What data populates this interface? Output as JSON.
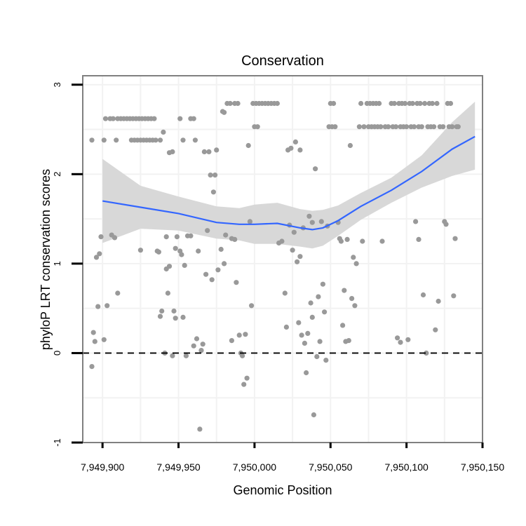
{
  "colors": {
    "panel_border": "#808080",
    "grid": "#f2f2f2",
    "points": "#999999",
    "smooth_line": "#3366ff",
    "ribbon": "#d6d6d6",
    "hline": "#000000"
  },
  "chart_data": {
    "type": "scatter",
    "title": "Conservation",
    "xlabel": "Genomic Position",
    "ylabel": "phyloP LRT conservation scores",
    "xlim": [
      7949887,
      7950150
    ],
    "ylim": [
      -1,
      3.1
    ],
    "x_ticks": [
      7949900,
      7949950,
      7950000,
      7950050,
      7950100,
      7950150
    ],
    "x_tick_labels": [
      "7,949,900",
      "7,949,950",
      "7,950,000",
      "7,950,050",
      "7,950,100",
      "7,950,150"
    ],
    "y_ticks": [
      -1,
      0,
      1,
      2,
      3
    ],
    "y_tick_labels": [
      "-1",
      "0",
      "1",
      "2",
      "3"
    ],
    "hline": {
      "y": 0,
      "style": "dashed"
    },
    "points": [
      [
        7949893,
        2.38
      ],
      [
        7949893,
        -0.15
      ],
      [
        7949894,
        0.23
      ],
      [
        7949895,
        0.13
      ],
      [
        7949896,
        1.07
      ],
      [
        7949897,
        0.52
      ],
      [
        7949898,
        1.11
      ],
      [
        7949899,
        1.3
      ],
      [
        7949901,
        0.15
      ],
      [
        7949901,
        2.38
      ],
      [
        7949902,
        2.62
      ],
      [
        7949903,
        0.53
      ],
      [
        7949905,
        2.62
      ],
      [
        7949906,
        1.32
      ],
      [
        7949907,
        2.62
      ],
      [
        7949908,
        1.29
      ],
      [
        7949909,
        2.38
      ],
      [
        7949910,
        2.62
      ],
      [
        7949910,
        0.67
      ],
      [
        7949912,
        2.62
      ],
      [
        7949914,
        2.62
      ],
      [
        7949916,
        2.62
      ],
      [
        7949918,
        2.62
      ],
      [
        7949919,
        2.38
      ],
      [
        7949920,
        2.62
      ],
      [
        7949921,
        2.38
      ],
      [
        7949922,
        2.62
      ],
      [
        7949923,
        2.38
      ],
      [
        7949924,
        2.62
      ],
      [
        7949925,
        1.15
      ],
      [
        7949925,
        2.38
      ],
      [
        7949926,
        2.62
      ],
      [
        7949927,
        2.38
      ],
      [
        7949928,
        2.62
      ],
      [
        7949929,
        2.38
      ],
      [
        7949930,
        2.62
      ],
      [
        7949931,
        2.38
      ],
      [
        7949932,
        2.62
      ],
      [
        7949933,
        2.38
      ],
      [
        7949934,
        2.62
      ],
      [
        7949935,
        2.38
      ],
      [
        7949936,
        1.14
      ],
      [
        7949937,
        1.13
      ],
      [
        7949938,
        2.38
      ],
      [
        7949938,
        0.41
      ],
      [
        7949939,
        0.47
      ],
      [
        7949940,
        2.47
      ],
      [
        7949941,
        0.0
      ],
      [
        7949942,
        0.94
      ],
      [
        7949942,
        1.3
      ],
      [
        7949943,
        0.67
      ],
      [
        7949944,
        2.24
      ],
      [
        7949944,
        0.97
      ],
      [
        7949946,
        2.25
      ],
      [
        7949946,
        -0.03
      ],
      [
        7949947,
        0.47
      ],
      [
        7949948,
        1.17
      ],
      [
        7949948,
        0.39
      ],
      [
        7949949,
        1.3
      ],
      [
        7949951,
        2.62
      ],
      [
        7949951,
        1.14
      ],
      [
        7949952,
        1.1
      ],
      [
        7949953,
        0.4
      ],
      [
        7949953,
        2.38
      ],
      [
        7949954,
        0.98
      ],
      [
        7949955,
        -0.03
      ],
      [
        7949956,
        1.31
      ],
      [
        7949958,
        2.62
      ],
      [
        7949958,
        1.31
      ],
      [
        7949960,
        0.08
      ],
      [
        7949960,
        2.62
      ],
      [
        7949961,
        2.38
      ],
      [
        7949962,
        0.16
      ],
      [
        7949963,
        1.14
      ],
      [
        7949964,
        -0.85
      ],
      [
        7949965,
        0.03
      ],
      [
        7949966,
        0.1
      ],
      [
        7949967,
        2.25
      ],
      [
        7949968,
        0.88
      ],
      [
        7949969,
        1.37
      ],
      [
        7949970,
        2.25
      ],
      [
        7949971,
        1.99
      ],
      [
        7949972,
        0.82
      ],
      [
        7949973,
        1.8
      ],
      [
        7949974,
        1.99
      ],
      [
        7949975,
        2.27
      ],
      [
        7949976,
        0.93
      ],
      [
        7949978,
        1.16
      ],
      [
        7949979,
        2.7
      ],
      [
        7949980,
        2.69
      ],
      [
        7949980,
        1.0
      ],
      [
        7949981,
        1.32
      ],
      [
        7949982,
        2.79
      ],
      [
        7949984,
        2.79
      ],
      [
        7949985,
        1.28
      ],
      [
        7949985,
        0.14
      ],
      [
        7949987,
        2.79
      ],
      [
        7949987,
        1.27
      ],
      [
        7949988,
        0.79
      ],
      [
        7949989,
        2.79
      ],
      [
        7949990,
        0.2
      ],
      [
        7949991,
        0.0
      ],
      [
        7949992,
        -0.03
      ],
      [
        7949993,
        -0.35
      ],
      [
        7949994,
        0.21
      ],
      [
        7949995,
        -0.28
      ],
      [
        7949996,
        2.32
      ],
      [
        7949997,
        1.47
      ],
      [
        7949998,
        0.53
      ],
      [
        7949999,
        2.79
      ],
      [
        7950000,
        2.53
      ],
      [
        7950001,
        2.79
      ],
      [
        7950002,
        2.53
      ],
      [
        7950003,
        2.79
      ],
      [
        7950005,
        2.79
      ],
      [
        7950007,
        2.79
      ],
      [
        7950009,
        2.79
      ],
      [
        7950011,
        2.79
      ],
      [
        7950013,
        2.79
      ],
      [
        7950015,
        2.79
      ],
      [
        7950016,
        1.23
      ],
      [
        7950018,
        1.25
      ],
      [
        7950020,
        0.67
      ],
      [
        7950021,
        0.29
      ],
      [
        7950022,
        2.27
      ],
      [
        7950023,
        1.43
      ],
      [
        7950024,
        2.29
      ],
      [
        7950025,
        1.15
      ],
      [
        7950026,
        1.35
      ],
      [
        7950027,
        2.36
      ],
      [
        7950028,
        1.02
      ],
      [
        7950029,
        0.34
      ],
      [
        7950030,
        2.27
      ],
      [
        7950030,
        1.08
      ],
      [
        7950031,
        0.2
      ],
      [
        7950032,
        1.4
      ],
      [
        7950033,
        0.11
      ],
      [
        7950034,
        -0.22
      ],
      [
        7950035,
        0.22
      ],
      [
        7950036,
        1.53
      ],
      [
        7950037,
        0.56
      ],
      [
        7950038,
        1.46
      ],
      [
        7950038,
        0.4
      ],
      [
        7950039,
        -0.69
      ],
      [
        7950040,
        2.06
      ],
      [
        7950041,
        -0.04
      ],
      [
        7950042,
        0.63
      ],
      [
        7950043,
        0.13
      ],
      [
        7950044,
        1.47
      ],
      [
        7950045,
        0.77
      ],
      [
        7950046,
        0.46
      ],
      [
        7950047,
        -0.08
      ],
      [
        7950048,
        1.42
      ],
      [
        7950049,
        2.53
      ],
      [
        7950050,
        2.79
      ],
      [
        7950051,
        2.53
      ],
      [
        7950052,
        2.79
      ],
      [
        7950053,
        2.53
      ],
      [
        7950055,
        1.46
      ],
      [
        7950056,
        1.28
      ],
      [
        7950057,
        1.25
      ],
      [
        7950058,
        0.31
      ],
      [
        7950059,
        0.7
      ],
      [
        7950060,
        0.13
      ],
      [
        7950061,
        1.27
      ],
      [
        7950062,
        0.14
      ],
      [
        7950063,
        2.32
      ],
      [
        7950064,
        0.61
      ],
      [
        7950065,
        1.07
      ],
      [
        7950066,
        0.53
      ],
      [
        7950067,
        1.0
      ],
      [
        7950069,
        2.53
      ],
      [
        7950070,
        2.79
      ],
      [
        7950071,
        1.25
      ],
      [
        7950072,
        2.53
      ],
      [
        7950074,
        2.79
      ],
      [
        7950075,
        2.53
      ],
      [
        7950076,
        2.79
      ],
      [
        7950077,
        2.53
      ],
      [
        7950078,
        2.79
      ],
      [
        7950079,
        2.53
      ],
      [
        7950080,
        2.79
      ],
      [
        7950081,
        2.53
      ],
      [
        7950082,
        2.79
      ],
      [
        7950083,
        2.53
      ],
      [
        7950084,
        1.25
      ],
      [
        7950086,
        2.53
      ],
      [
        7950088,
        2.53
      ],
      [
        7950090,
        2.79
      ],
      [
        7950091,
        2.53
      ],
      [
        7950092,
        2.79
      ],
      [
        7950093,
        2.53
      ],
      [
        7950094,
        0.17
      ],
      [
        7950095,
        2.79
      ],
      [
        7950096,
        2.53
      ],
      [
        7950096,
        0.12
      ],
      [
        7950097,
        2.79
      ],
      [
        7950098,
        2.53
      ],
      [
        7950099,
        2.79
      ],
      [
        7950100,
        2.53
      ],
      [
        7950101,
        0.15
      ],
      [
        7950102,
        2.79
      ],
      [
        7950103,
        2.53
      ],
      [
        7950104,
        2.79
      ],
      [
        7950105,
        2.53
      ],
      [
        7950106,
        1.47
      ],
      [
        7950107,
        2.79
      ],
      [
        7950108,
        1.27
      ],
      [
        7950108,
        2.53
      ],
      [
        7950109,
        2.79
      ],
      [
        7950110,
        2.53
      ],
      [
        7950111,
        0.65
      ],
      [
        7950112,
        2.79
      ],
      [
        7950113,
        0.0
      ],
      [
        7950114,
        2.53
      ],
      [
        7950115,
        2.79
      ],
      [
        7950116,
        2.53
      ],
      [
        7950117,
        2.79
      ],
      [
        7950118,
        2.53
      ],
      [
        7950119,
        0.26
      ],
      [
        7950120,
        2.79
      ],
      [
        7950121,
        0.58
      ],
      [
        7950122,
        2.53
      ],
      [
        7950124,
        2.53
      ],
      [
        7950125,
        1.47
      ],
      [
        7950126,
        1.44
      ],
      [
        7950127,
        2.79
      ],
      [
        7950128,
        2.53
      ],
      [
        7950129,
        2.79
      ],
      [
        7950130,
        2.53
      ],
      [
        7950131,
        0.64
      ],
      [
        7950132,
        1.28
      ],
      [
        7950133,
        2.53
      ],
      [
        7950134,
        2.53
      ]
    ],
    "smooth": {
      "x": [
        7949900,
        7949925,
        7949950,
        7949975,
        7949990,
        7950000,
        7950015,
        7950030,
        7950038,
        7950045,
        7950055,
        7950070,
        7950090,
        7950110,
        7950130,
        7950145
      ],
      "y": [
        1.7,
        1.63,
        1.56,
        1.46,
        1.44,
        1.44,
        1.45,
        1.4,
        1.38,
        1.4,
        1.48,
        1.64,
        1.82,
        2.03,
        2.28,
        2.42
      ],
      "lower": [
        1.23,
        1.39,
        1.37,
        1.28,
        1.26,
        1.22,
        1.22,
        1.19,
        1.17,
        1.2,
        1.31,
        1.49,
        1.68,
        1.85,
        1.98,
        2.05
      ],
      "upper": [
        2.17,
        1.87,
        1.75,
        1.64,
        1.62,
        1.66,
        1.68,
        1.61,
        1.59,
        1.6,
        1.65,
        1.79,
        1.96,
        2.21,
        2.58,
        2.81
      ]
    }
  }
}
